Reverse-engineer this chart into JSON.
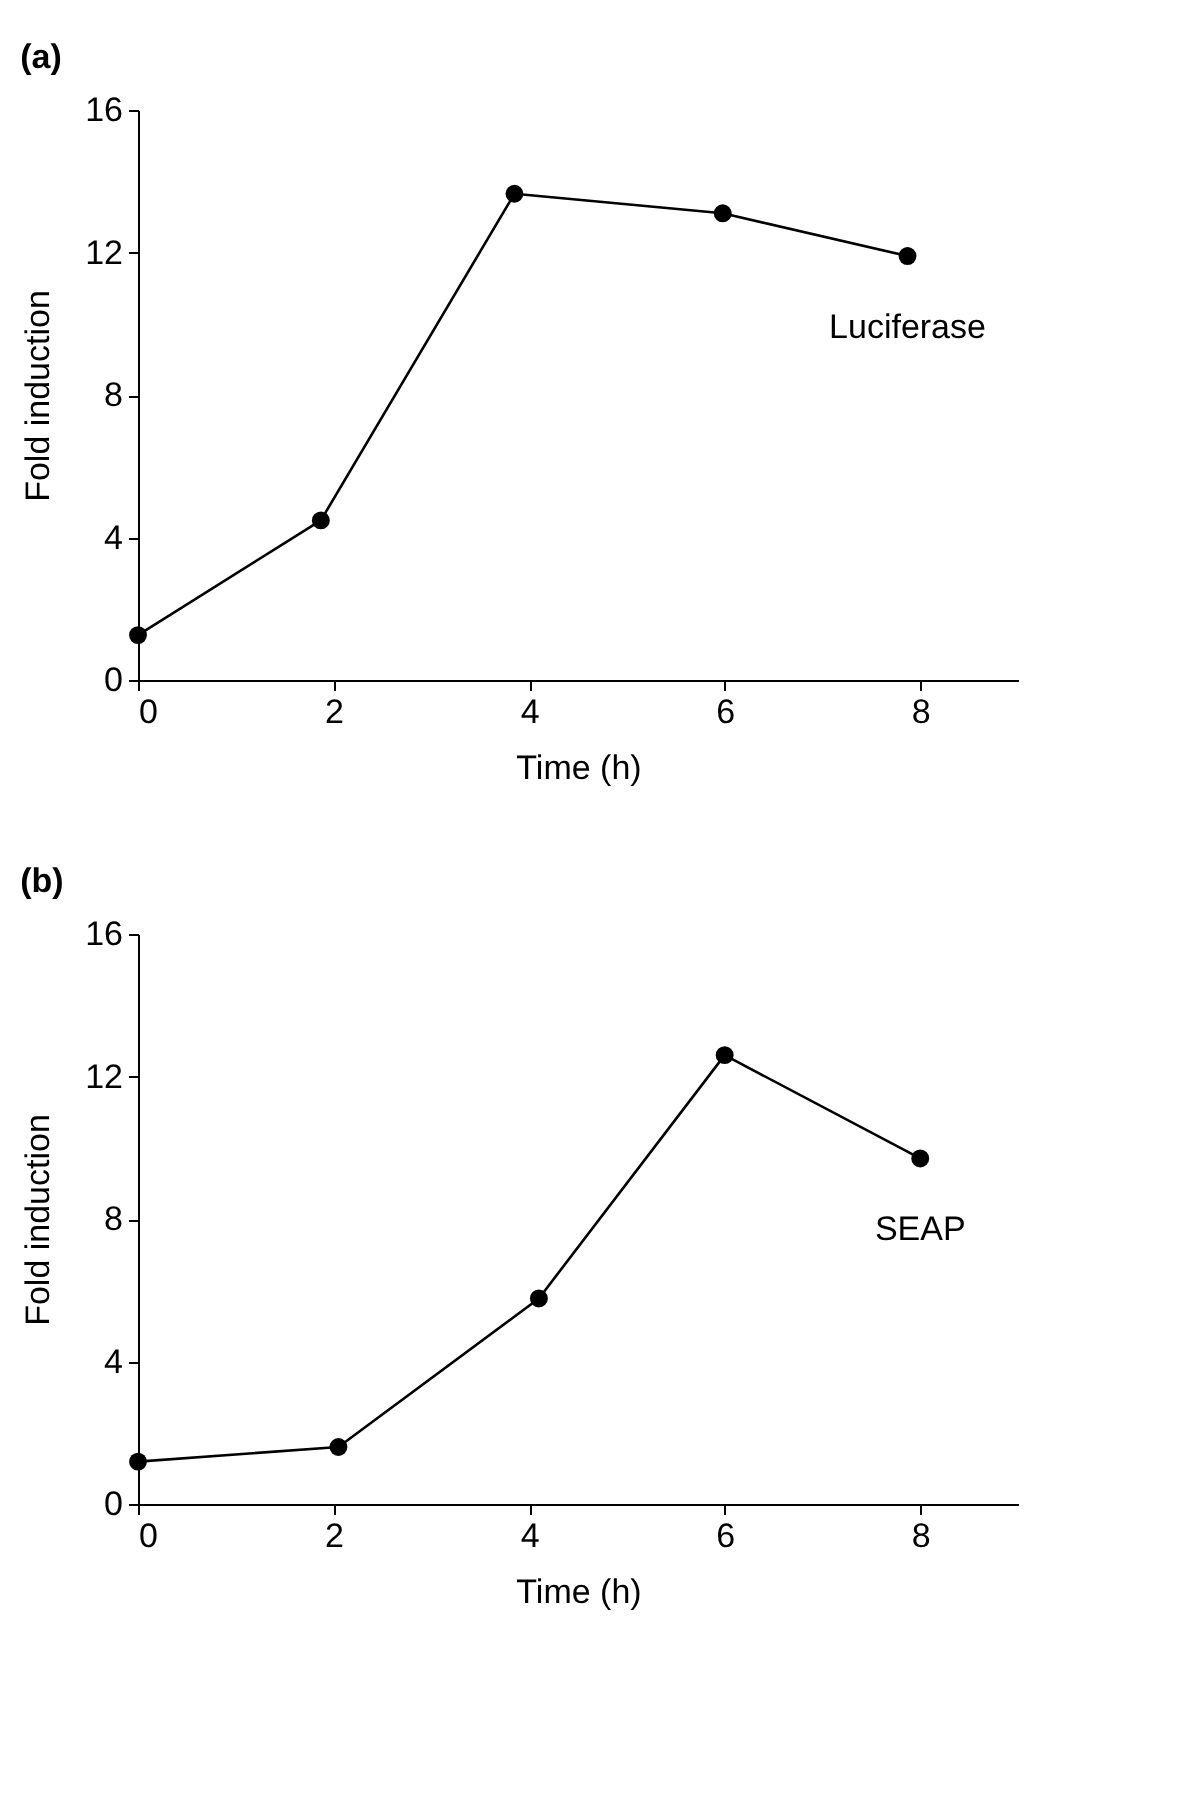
{
  "chart_data": [
    {
      "type": "line",
      "title": "(a)",
      "xlabel": "Time (h)",
      "ylabel": "Fold induction",
      "x": [
        0,
        1.87,
        3.85,
        5.98,
        7.87
      ],
      "series": [
        {
          "name": "Luciferase",
          "color": "#000000",
          "values": [
            1.26,
            4.48,
            13.65,
            13.1,
            11.9
          ]
        }
      ],
      "xlim": [
        0,
        9
      ],
      "xticks": [
        0,
        2,
        4,
        6,
        8
      ],
      "ylim": [
        0,
        16
      ],
      "yticks": [
        0,
        4,
        8,
        12,
        16
      ],
      "grid": false,
      "legend": false,
      "marker": "circle",
      "line_style": "solid"
    },
    {
      "type": "line",
      "title": "(b)",
      "xlabel": "Time (h)",
      "ylabel": "Fold induction",
      "x": [
        0,
        2.05,
        4.1,
        6.0,
        8.0
      ],
      "series": [
        {
          "name": "SEAP",
          "color": "#000000",
          "values": [
            1.19,
            1.6,
            5.77,
            12.6,
            9.7
          ]
        }
      ],
      "xlim": [
        0,
        9
      ],
      "xticks": [
        0,
        2,
        4,
        6,
        8
      ],
      "ylim": [
        0,
        16
      ],
      "yticks": [
        0,
        4,
        8,
        12,
        16
      ],
      "grid": false,
      "legend": false,
      "marker": "circle",
      "line_style": "solid"
    }
  ]
}
